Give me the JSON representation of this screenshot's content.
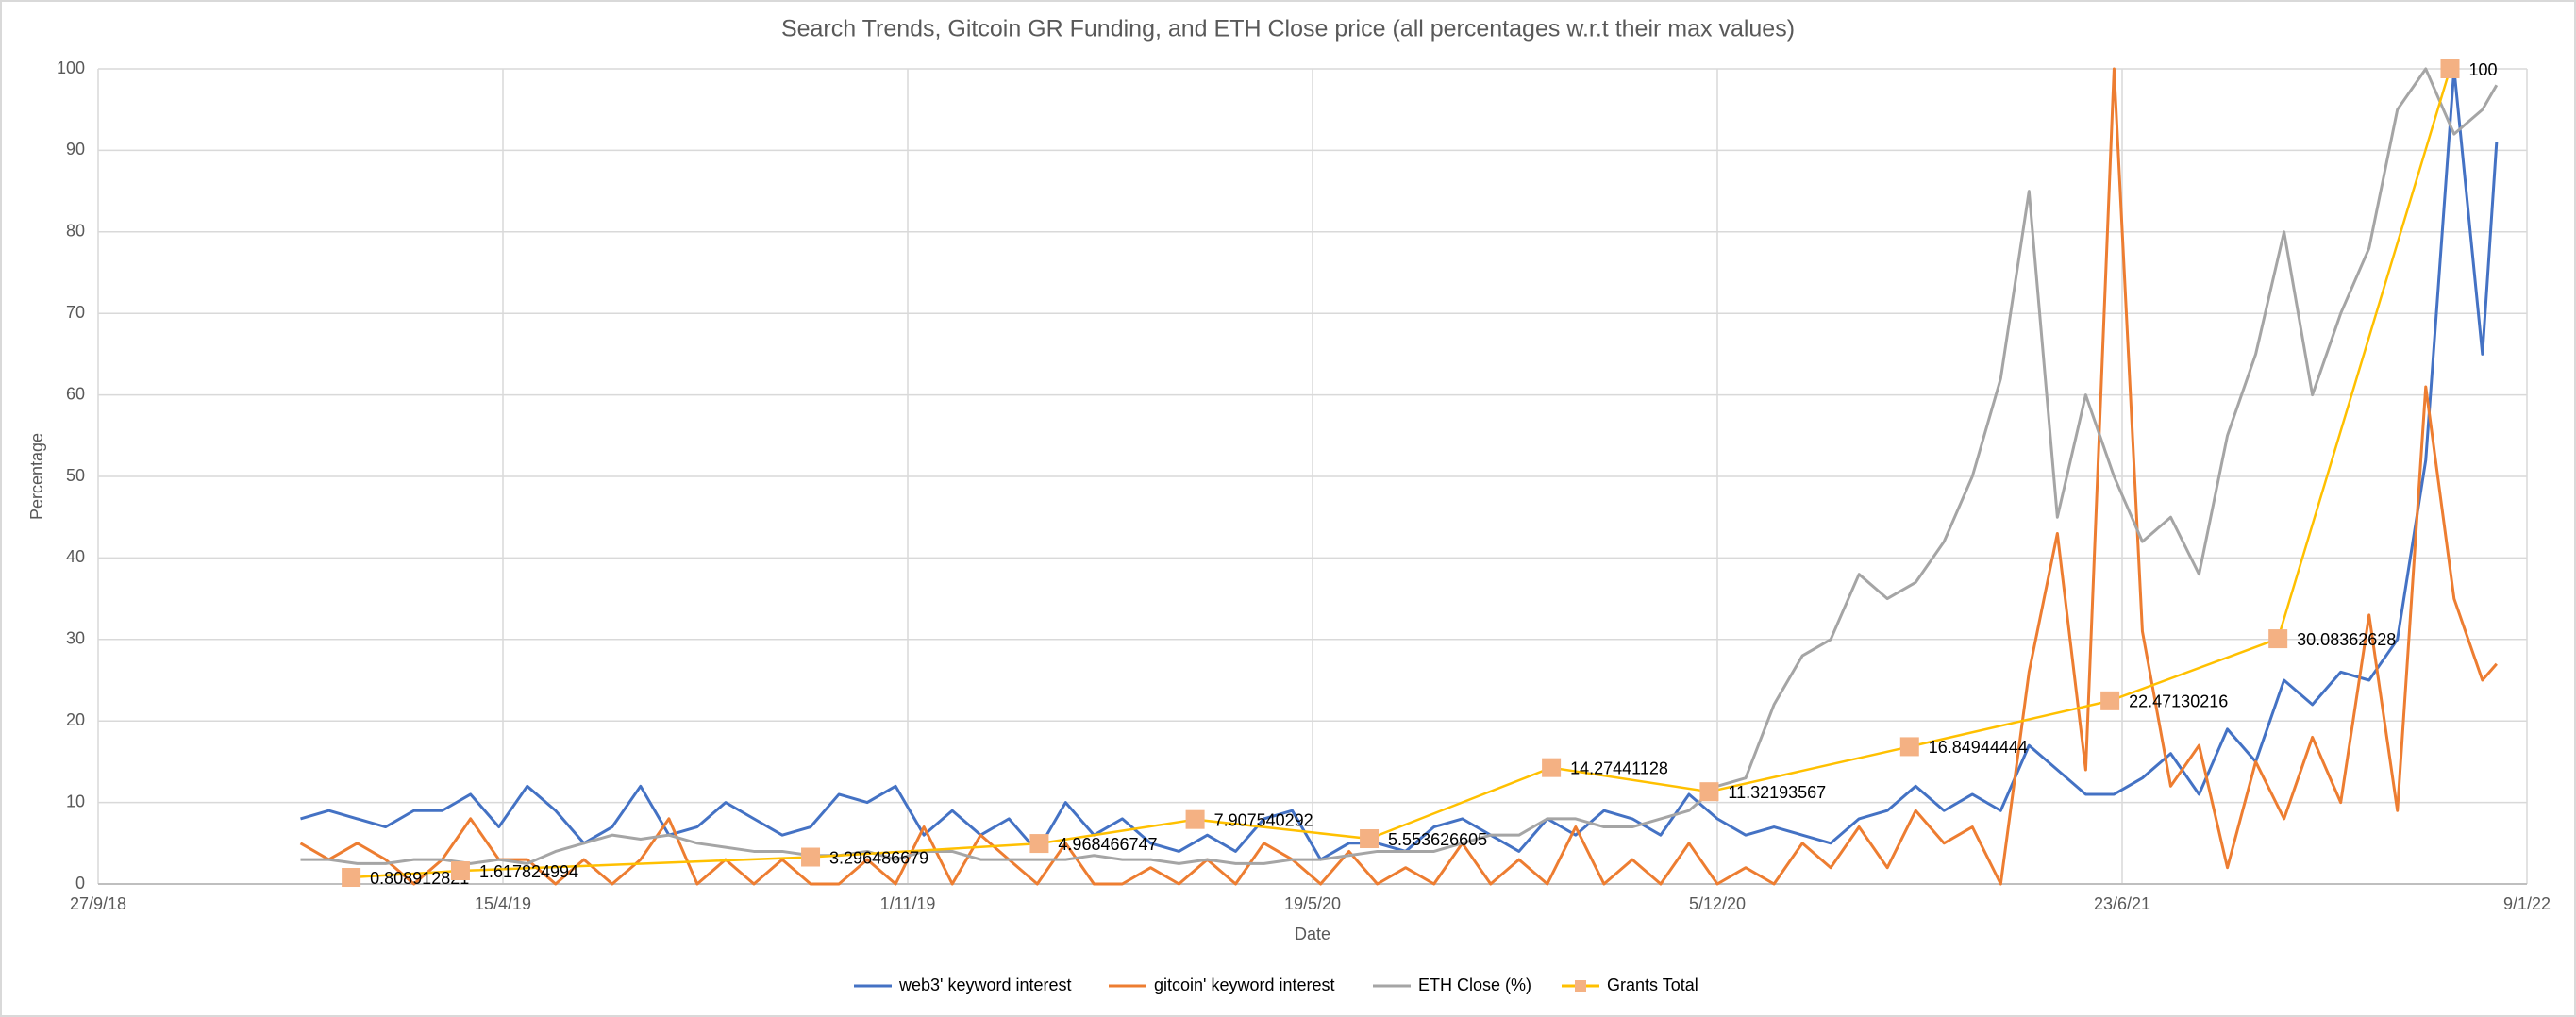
{
  "chart_data": {
    "type": "line",
    "title": "Search Trends, Gitcoin GR Funding, and ETH Close price (all percentages w.r.t their max values)",
    "x_label": "Date",
    "y_label": "Percentage",
    "xlim": [
      43370,
      44570
    ],
    "xticks": [
      {
        "value": 43370,
        "label": "27/9/18"
      },
      {
        "value": 43570,
        "label": "15/4/19"
      },
      {
        "value": 43770,
        "label": "1/11/19"
      },
      {
        "value": 43970,
        "label": "19/5/20"
      },
      {
        "value": 44170,
        "label": "5/12/20"
      },
      {
        "value": 44370,
        "label": "23/6/21"
      },
      {
        "value": 44570,
        "label": "9/1/22"
      }
    ],
    "ylim": [
      0,
      100
    ],
    "yticks": [
      0,
      10,
      20,
      30,
      40,
      50,
      60,
      70,
      80,
      90,
      100
    ],
    "grid": true,
    "legend": "bottom",
    "x": [
      43470,
      43484,
      43498,
      43512,
      43526,
      43540,
      43554,
      43568,
      43582,
      43596,
      43610,
      43624,
      43638,
      43652,
      43666,
      43680,
      43694,
      43708,
      43722,
      43736,
      43750,
      43764,
      43778,
      43792,
      43806,
      43820,
      43834,
      43848,
      43862,
      43876,
      43890,
      43904,
      43918,
      43932,
      43946,
      43960,
      43974,
      43988,
      44002,
      44016,
      44030,
      44044,
      44058,
      44072,
      44086,
      44100,
      44114,
      44128,
      44142,
      44156,
      44170,
      44184,
      44198,
      44212,
      44226,
      44240,
      44254,
      44268,
      44282,
      44296,
      44310,
      44324,
      44338,
      44352,
      44366,
      44380,
      44394,
      44408,
      44422,
      44436,
      44450,
      44464,
      44478,
      44492,
      44506,
      44520,
      44534,
      44548,
      44555
    ],
    "series": [
      {
        "name": "web3' keyword interest",
        "color": "#4472c4",
        "values": [
          8,
          9,
          8,
          7,
          9,
          9,
          11,
          7,
          12,
          9,
          5,
          7,
          12,
          6,
          7,
          10,
          8,
          6,
          7,
          11,
          10,
          12,
          6,
          9,
          6,
          8,
          4,
          10,
          6,
          8,
          5,
          4,
          6,
          4,
          8,
          9,
          3,
          5,
          5,
          4,
          7,
          8,
          6,
          4,
          8,
          6,
          9,
          8,
          6,
          11,
          8,
          6,
          7,
          6,
          5,
          8,
          9,
          12,
          9,
          11,
          9,
          17,
          14,
          11,
          11,
          13,
          16,
          11,
          19,
          15,
          25,
          22,
          26,
          25,
          30,
          52,
          100,
          65,
          91
        ]
      },
      {
        "name": "gitcoin' keyword interest",
        "color": "#ed7d31",
        "values": [
          5,
          3,
          5,
          3,
          0,
          3,
          8,
          3,
          3,
          0,
          3,
          0,
          3,
          8,
          0,
          3,
          0,
          3,
          0,
          0,
          3,
          0,
          7,
          0,
          6,
          3,
          0,
          5,
          0,
          0,
          2,
          0,
          3,
          0,
          5,
          3,
          0,
          4,
          0,
          2,
          0,
          5,
          0,
          3,
          0,
          7,
          0,
          3,
          0,
          5,
          0,
          2,
          0,
          5,
          2,
          7,
          2,
          9,
          5,
          7,
          0,
          26,
          43,
          14,
          100,
          31,
          12,
          17,
          2,
          15,
          8,
          18,
          10,
          33,
          9,
          61,
          35,
          25,
          27
        ]
      },
      {
        "name": "ETH Close (%)",
        "color": "#a5a5a5",
        "values": [
          3,
          3,
          2.5,
          2.5,
          3,
          3,
          2.5,
          3,
          2.5,
          4,
          5,
          6,
          5.5,
          6,
          5,
          4.5,
          4,
          4,
          3.5,
          3.5,
          4,
          3,
          4,
          4,
          3,
          3,
          3,
          3,
          3.5,
          3,
          3,
          2.5,
          3,
          2.5,
          2.5,
          3,
          3,
          3.5,
          4,
          4,
          4,
          5,
          6,
          6,
          8,
          8,
          7,
          7,
          8,
          9,
          12,
          13,
          22,
          28,
          30,
          38,
          35,
          37,
          42,
          50,
          62,
          85,
          45,
          60,
          50,
          42,
          45,
          38,
          55,
          65,
          80,
          60,
          70,
          78,
          95,
          100,
          92,
          95,
          98
        ]
      },
      {
        "name": "Grants Total",
        "color": "#ffc000",
        "marker_color": "#f4b183",
        "x": [
          43495,
          43549,
          43722,
          43835,
          43912,
          43998,
          44088,
          44166,
          44265,
          44364,
          44447,
          44532
        ],
        "values": [
          0.808912821,
          1.617824994,
          3.296486679,
          4.968466747,
          7.907540292,
          5.553626605,
          14.27441128,
          11.32193567,
          16.84944444,
          22.47130216,
          30.08362628,
          100
        ]
      }
    ]
  }
}
